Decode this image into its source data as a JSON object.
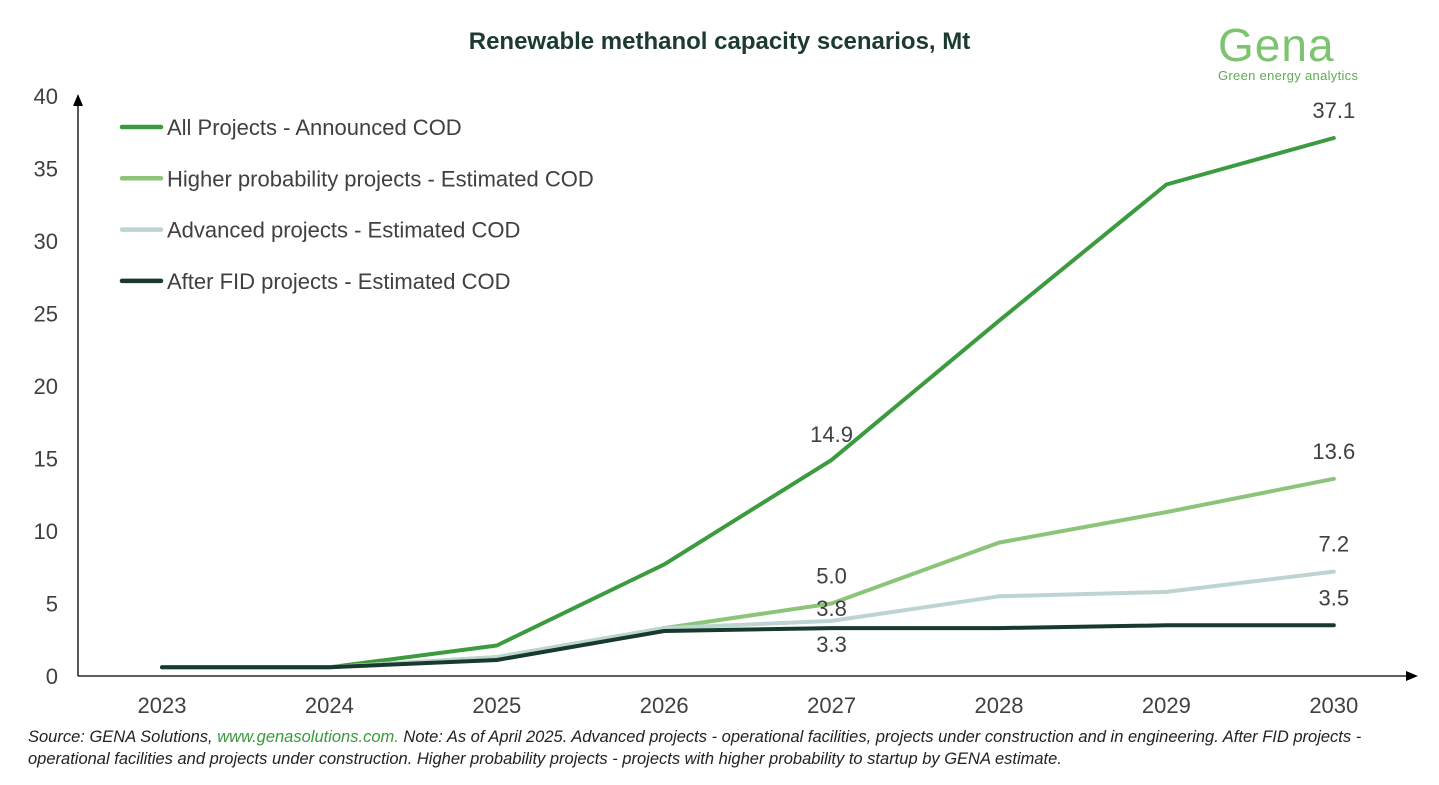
{
  "chart_data": {
    "type": "line",
    "title": "Renewable methanol capacity scenarios, Mt",
    "xlabel": "",
    "ylabel": "",
    "categories": [
      "2023",
      "2024",
      "2025",
      "2026",
      "2027",
      "2028",
      "2029",
      "2030"
    ],
    "ylim": [
      0,
      40
    ],
    "yticks": [
      0,
      5,
      10,
      15,
      20,
      25,
      30,
      35,
      40
    ],
    "legend_position": "top-left",
    "series": [
      {
        "name": "All Projects - Announced COD",
        "color": "#3c9a3f",
        "values": [
          0.6,
          0.6,
          2.1,
          7.7,
          14.9,
          24.5,
          33.9,
          37.1
        ]
      },
      {
        "name": "Higher probability projects - Estimated COD",
        "color": "#8cc47a",
        "values": [
          0.6,
          0.6,
          1.3,
          3.3,
          5.0,
          9.2,
          11.3,
          13.6
        ]
      },
      {
        "name": "Advanced projects - Estimated COD",
        "color": "#bcd4d2",
        "values": [
          0.6,
          0.6,
          1.3,
          3.3,
          3.8,
          5.5,
          5.8,
          7.2
        ]
      },
      {
        "name": "After FID projects - Estimated COD",
        "color": "#173a2c",
        "values": [
          0.6,
          0.6,
          1.1,
          3.1,
          3.3,
          3.3,
          3.5,
          3.5
        ]
      }
    ],
    "annotations": [
      {
        "series": 0,
        "category": "2027",
        "label": "14.9"
      },
      {
        "series": 0,
        "category": "2030",
        "label": "37.1"
      },
      {
        "series": 1,
        "category": "2027",
        "label": "5.0"
      },
      {
        "series": 1,
        "category": "2030",
        "label": "13.6"
      },
      {
        "series": 2,
        "category": "2027",
        "label": "3.8"
      },
      {
        "series": 2,
        "category": "2030",
        "label": "7.2"
      },
      {
        "series": 3,
        "category": "2027",
        "label": "3.3"
      },
      {
        "series": 3,
        "category": "2030",
        "label": "3.5"
      }
    ]
  },
  "logo": {
    "word": "Gena",
    "tagline": "Green energy analytics"
  },
  "source": {
    "prefix": "Source: GENA Solutions, ",
    "link": "www.genasolutions.com.",
    "rest": " Note: As of April 2025. Advanced projects - operational facilities, projects under construction and in engineering. After FID projects - operational facilities and projects under construction. Higher probability projects - projects with higher probability to startup by GENA estimate."
  }
}
